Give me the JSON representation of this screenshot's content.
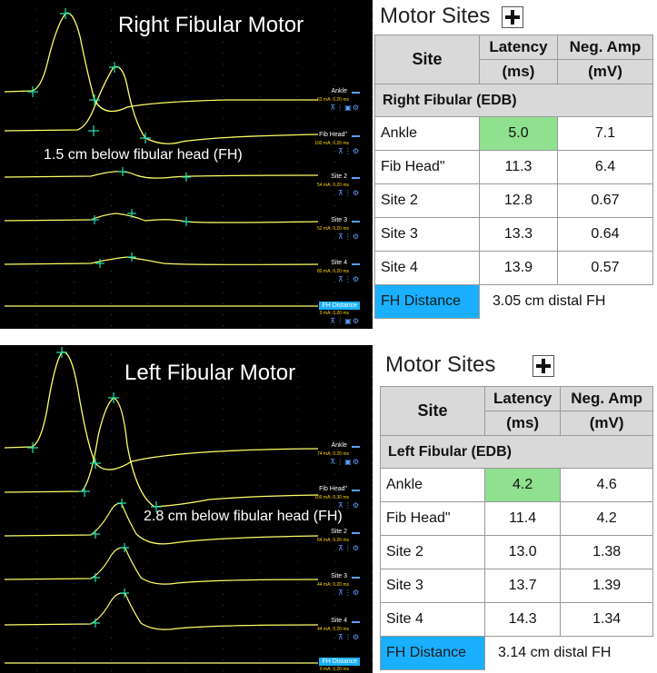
{
  "top": {
    "scope": {
      "title": "Right Fibular Motor",
      "note": "1.5 cm below fibular head (FH)",
      "traces": [
        {
          "label": "Ankle",
          "params": "63 mA; 0.20 ms"
        },
        {
          "label": "Fib Head\"",
          "params": "100 mA; 0.20 ms"
        },
        {
          "label": "Site 2",
          "params": "54 mA; 0.20 ms"
        },
        {
          "label": "Site 3",
          "params": "52 mA; 0.20 ms"
        },
        {
          "label": "Site 4",
          "params": "80 mA; 0.20 ms"
        },
        {
          "label": "FH Distance",
          "params": "0 mA; 0.20 ms"
        }
      ]
    },
    "panel": {
      "title": "Motor Sites",
      "headers": {
        "site": "Site",
        "latency": "Latency",
        "latency_unit": "(ms)",
        "amp": "Neg. Amp",
        "amp_unit": "(mV)"
      },
      "group": "Right Fibular (EDB)",
      "rows": [
        {
          "site": "Ankle",
          "latency": "5.0",
          "amp": "7.1"
        },
        {
          "site": "Fib Head\"",
          "latency": "11.3",
          "amp": "6.4"
        },
        {
          "site": "Site 2",
          "latency": "12.8",
          "amp": "0.67"
        },
        {
          "site": "Site 3",
          "latency": "13.3",
          "amp": "0.64"
        },
        {
          "site": "Site 4",
          "latency": "13.9",
          "amp": "0.57"
        }
      ],
      "fh_label": "FH Distance",
      "fh_value": "3.05 cm distal  FH"
    }
  },
  "bottom": {
    "scope": {
      "title": "Left Fibular Motor",
      "note": "2.8 cm below fibular head (FH)",
      "traces": [
        {
          "label": "Ankle",
          "params": "74 mA; 0.20 ms"
        },
        {
          "label": "Fib Head\"",
          "params": "100 mA; 0.30 ms"
        },
        {
          "label": "Site 2",
          "params": "64 mA; 0.20 ms"
        },
        {
          "label": "Site 3",
          "params": "44 mA; 0.20 ms"
        },
        {
          "label": "Site 4",
          "params": "44 mA; 0.20 ms"
        },
        {
          "label": "FH Distance",
          "params": "0 mA; 0.20 ms"
        }
      ]
    },
    "panel": {
      "title": "Motor Sites",
      "headers": {
        "site": "Site",
        "latency": "Latency",
        "latency_unit": "(ms)",
        "amp": "Neg. Amp",
        "amp_unit": "(mV)"
      },
      "group": "Left Fibular (EDB)",
      "rows": [
        {
          "site": "Ankle",
          "latency": "4.2",
          "amp": "4.6"
        },
        {
          "site": "Fib Head\"",
          "latency": "11.4",
          "amp": "4.2"
        },
        {
          "site": "Site 2",
          "latency": "13.0",
          "amp": "1.38"
        },
        {
          "site": "Site 3",
          "latency": "13.7",
          "amp": "1.39"
        },
        {
          "site": "Site 4",
          "latency": "14.3",
          "amp": "1.34"
        }
      ],
      "fh_label": "FH Distance",
      "fh_value": "3.14 cm distal  FH"
    }
  },
  "colors": {
    "trace": "#ffff66",
    "marker": "#20e0b0",
    "highlight": "#8fe08f",
    "fh": "#1ab0ff"
  }
}
